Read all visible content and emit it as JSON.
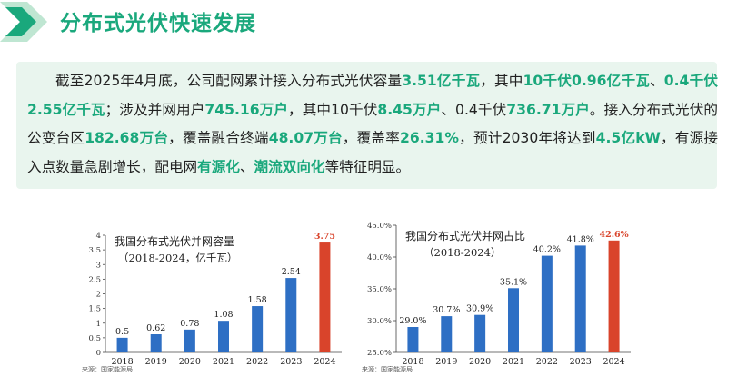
{
  "header": {
    "title": "分布式光伏快速发展",
    "icon": "double-chevron-right-icon",
    "accent_color": "#1aa87c"
  },
  "summary": {
    "segments": [
      {
        "text": "截至2025年4月底，公司配网累计接入分布式光伏容量",
        "hl": false
      },
      {
        "text": "3.51亿千瓦",
        "hl": true
      },
      {
        "text": "，其中",
        "hl": false
      },
      {
        "text": "10千伏0.96亿千瓦",
        "hl": true
      },
      {
        "text": "、",
        "hl": false
      },
      {
        "text": "0.4千伏2.55亿千瓦",
        "hl": true
      },
      {
        "text": "；涉及并网用户",
        "hl": false
      },
      {
        "text": "745.16万户",
        "hl": true
      },
      {
        "text": "，其中10千伏",
        "hl": false
      },
      {
        "text": "8.45万户",
        "hl": true
      },
      {
        "text": "、0.4千伏",
        "hl": false
      },
      {
        "text": "736.71万户",
        "hl": true
      },
      {
        "text": "。接入分布式光伏的公变台区",
        "hl": false
      },
      {
        "text": "182.68万台",
        "hl": true
      },
      {
        "text": "，覆盖融合终端",
        "hl": false
      },
      {
        "text": "48.07万台",
        "hl": true
      },
      {
        "text": "，覆盖率",
        "hl": false
      },
      {
        "text": "26.31%",
        "hl": true
      },
      {
        "text": "，预计2030年将达到",
        "hl": false
      },
      {
        "text": "4.5亿kW",
        "hl": true
      },
      {
        "text": "，有源接入点数量急剧增长，配电网",
        "hl": false
      },
      {
        "text": "有源化",
        "hl": true
      },
      {
        "text": "、",
        "hl": false
      },
      {
        "text": "潮流双向化",
        "hl": true
      },
      {
        "text": "等特征明显。",
        "hl": false
      }
    ]
  },
  "chart_data": [
    {
      "type": "bar",
      "title": "我国分布式光伏并网容量",
      "subtitle": "（2018-2024，亿千瓦）",
      "categories": [
        "2018",
        "2019",
        "2020",
        "2021",
        "2022",
        "2023",
        "2024"
      ],
      "values": [
        0.5,
        0.62,
        0.78,
        1.08,
        1.58,
        2.54,
        3.75
      ],
      "labels": [
        "0.5",
        "0.62",
        "0.78",
        "1.08",
        "1.58",
        "2.54",
        "3.75"
      ],
      "y_ticks": [
        "0",
        "0.5",
        "1",
        "1.5",
        "2",
        "2.5",
        "3",
        "3.5",
        "4"
      ],
      "ylim": [
        0,
        4
      ],
      "source": "来源：国家能源局",
      "bar_color": "#2e6fc4",
      "highlight_color": "#d9442b",
      "highlight_index": 6
    },
    {
      "type": "bar",
      "title": "我国分布式光伏并网占比",
      "subtitle": "（2018-2024）",
      "categories": [
        "2018",
        "2019",
        "2020",
        "2021",
        "2022",
        "2023",
        "2024"
      ],
      "values": [
        29.0,
        30.7,
        30.9,
        35.1,
        40.2,
        41.8,
        42.6
      ],
      "labels": [
        "29.0%",
        "30.7%",
        "30.9%",
        "35.1%",
        "40.2%",
        "41.8%",
        "42.6%"
      ],
      "y_ticks": [
        "25.0%",
        "30.0%",
        "35.0%",
        "40.0%",
        "45.0%"
      ],
      "ylim": [
        25,
        45
      ],
      "source": "来源：国家能源局",
      "bar_color": "#2e6fc4",
      "highlight_color": "#d9442b",
      "highlight_index": 6
    }
  ]
}
